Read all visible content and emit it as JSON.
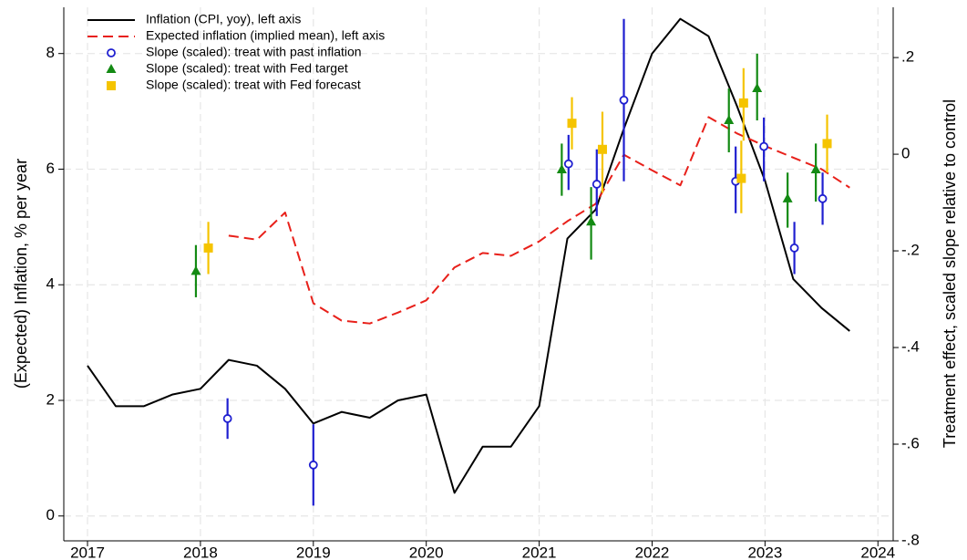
{
  "chart_data": {
    "type": "line",
    "y_label": "(Expected) Inflation, % per year",
    "y2_label": "Treatment effect, scaled slope relative to control",
    "xlim": [
      2016.79,
      2024.135
    ],
    "xticks": [
      2017,
      2018,
      2019,
      2020,
      2021,
      2022,
      2023,
      2024
    ],
    "ylim": [
      -0.43,
      8.8
    ],
    "yticks": [
      0,
      2,
      4,
      6,
      8
    ],
    "y2lim": [
      -0.8,
      0.304
    ],
    "y2ticks": [
      {
        "value": 0.2,
        "label": ".2"
      },
      0,
      {
        "value": -0.2,
        "label": "-.2"
      },
      {
        "value": -0.4,
        "label": "-.4"
      },
      {
        "value": -0.6,
        "label": "-.6"
      },
      {
        "value": -0.8,
        "label": "-.8"
      }
    ],
    "grid": true,
    "legend": "upper left",
    "series": [
      {
        "name": "Inflation (CPI, yoy), left axis",
        "color": "#000000",
        "type": "line",
        "style": "solid",
        "x": [
          2017,
          2017.25,
          2017.5,
          2017.75,
          2018,
          2018.25,
          2018.5,
          2018.75,
          2019,
          2019.25,
          2019.5,
          2019.75,
          2020,
          2020.25,
          2020.5,
          2020.75,
          2021,
          2021.25,
          2021.5,
          2021.75,
          2022,
          2022.25,
          2022.5,
          2022.75,
          2023,
          2023.25,
          2023.5,
          2023.75
        ],
        "values": [
          2.6,
          1.9,
          1.9,
          2.1,
          2.2,
          2.7,
          2.6,
          2.2,
          1.6,
          1.8,
          1.7,
          2.0,
          2.1,
          0.4,
          1.2,
          1.2,
          1.9,
          4.8,
          5.3,
          6.7,
          8.0,
          8.6,
          8.3,
          7.1,
          5.8,
          4.1,
          3.6,
          3.2
        ]
      },
      {
        "name": "Expected inflation (implied mean), left axis",
        "color": "#e8201a",
        "type": "line",
        "style": "dashed",
        "x": [
          2018.25,
          2018.5,
          2018.75,
          2019,
          2019.25,
          2019.5,
          2019.75,
          2020,
          2020.25,
          2020.5,
          2020.75,
          2021,
          2021.25,
          2021.5,
          2021.75,
          2022,
          2022.25,
          2022.5,
          2022.75,
          2023,
          2023.25,
          2023.5,
          2023.75
        ],
        "values": [
          4.85,
          4.78,
          5.25,
          3.68,
          3.38,
          3.33,
          3.52,
          3.73,
          4.3,
          4.55,
          4.5,
          4.75,
          5.1,
          5.4,
          6.25,
          5.98,
          5.72,
          6.9,
          6.62,
          6.4,
          6.2,
          6.0,
          5.68
        ]
      },
      {
        "name": "Slope (scaled): treat with past inflation",
        "color": "#1f1fd0",
        "type": "scatter",
        "marker": "circle",
        "axis": "y2",
        "x": [
          2018.24,
          2019.0,
          2021.26,
          2021.51,
          2021.75,
          2022.74,
          2022.99,
          2023.26,
          2023.51
        ],
        "values": [
          -0.547,
          -0.643,
          -0.02,
          -0.062,
          0.112,
          -0.056,
          0.016,
          -0.194,
          -0.092
        ],
        "low": [
          -0.589,
          -0.727,
          -0.074,
          -0.128,
          -0.056,
          -0.122,
          -0.056,
          -0.248,
          -0.146
        ],
        "high": [
          -0.505,
          -0.559,
          0.04,
          0.01,
          0.28,
          0.016,
          0.076,
          -0.14,
          -0.038
        ]
      },
      {
        "name": "Slope (scaled): treat with Fed target",
        "color": "#138a13",
        "type": "scatter",
        "marker": "triangle",
        "axis": "y2",
        "x": [
          2017.96,
          2021.2,
          2021.46,
          2022.68,
          2022.93,
          2023.2,
          2023.45
        ],
        "values": [
          -0.242,
          -0.032,
          -0.14,
          0.07,
          0.136,
          -0.092,
          -0.032
        ],
        "low": [
          -0.296,
          -0.086,
          -0.218,
          0.004,
          0.07,
          -0.152,
          -0.098
        ],
        "high": [
          -0.188,
          0.022,
          -0.068,
          0.136,
          0.208,
          -0.038,
          0.022
        ]
      },
      {
        "name": "Slope (scaled): treat with Fed forecast",
        "color": "#f5c400",
        "type": "scatter",
        "marker": "square",
        "axis": "y2",
        "x": [
          2018.07,
          2021.29,
          2021.56,
          2022.79,
          2022.81,
          2023.55
        ],
        "values": [
          -0.194,
          0.064,
          0.01,
          -0.05,
          0.106,
          0.022
        ],
        "low": [
          -0.248,
          0.01,
          -0.08,
          -0.122,
          0.028,
          -0.038
        ],
        "high": [
          -0.14,
          0.118,
          0.088,
          0.028,
          0.178,
          0.082
        ]
      }
    ]
  }
}
